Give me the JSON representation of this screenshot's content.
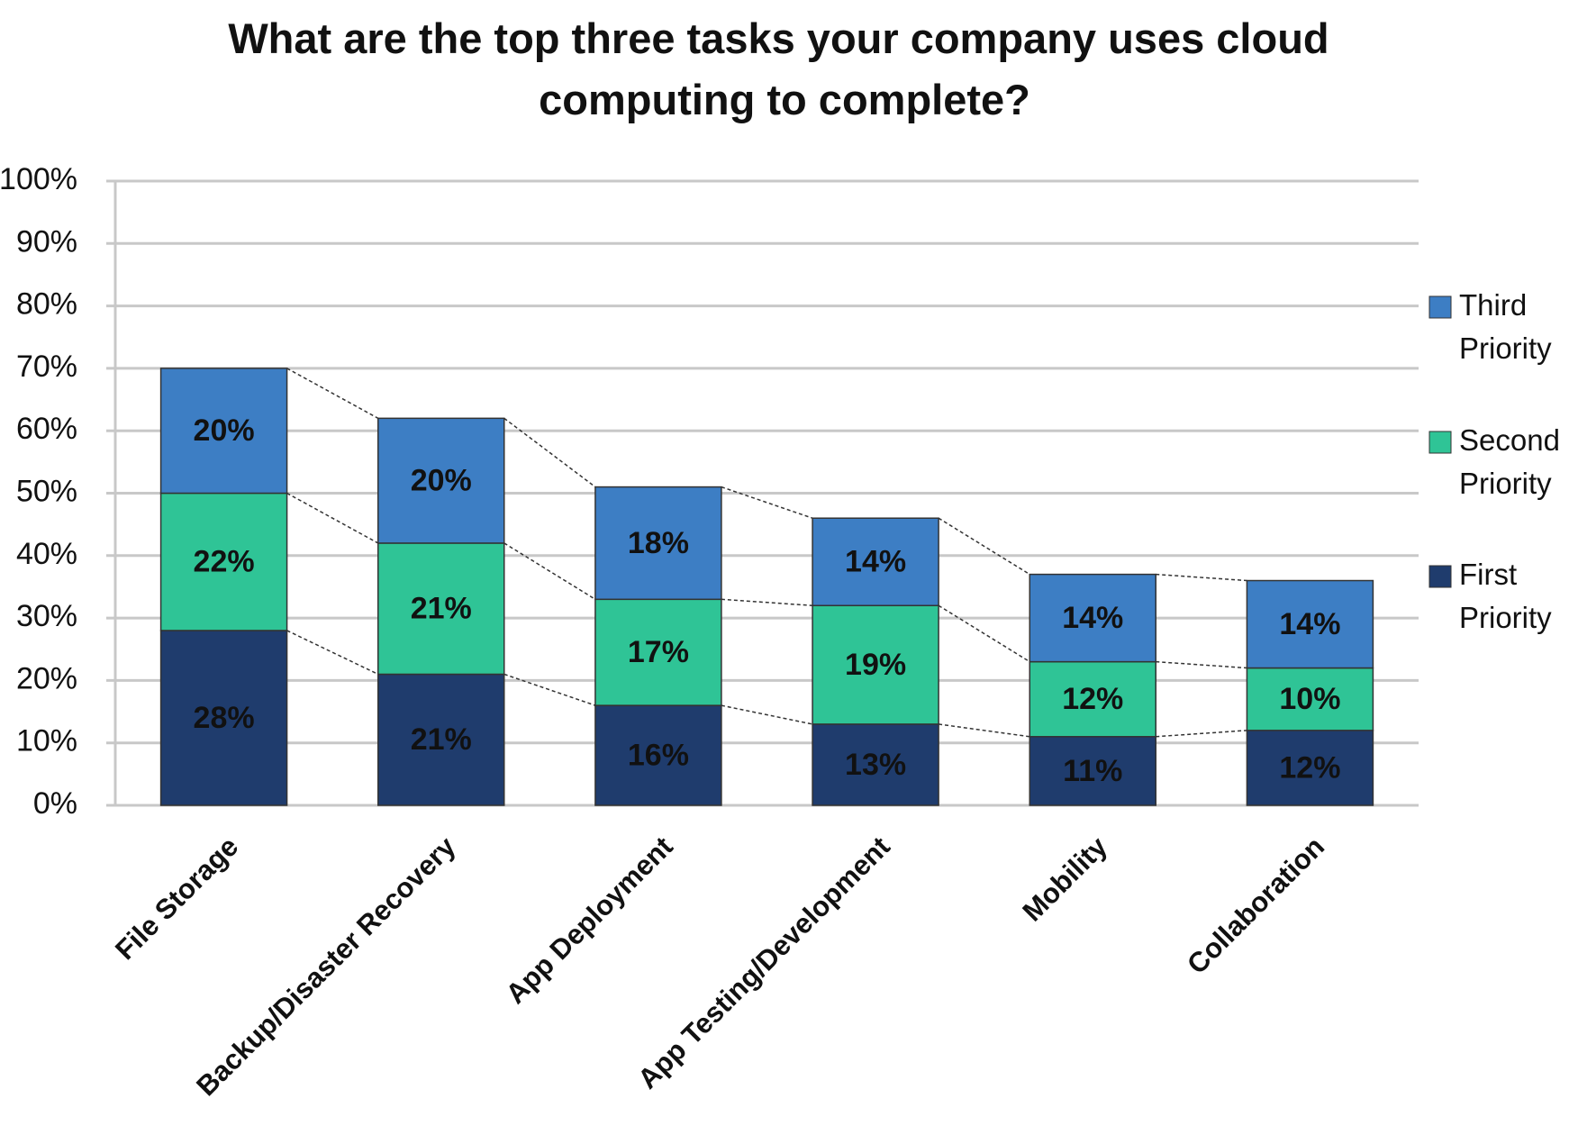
{
  "chart_data": {
    "type": "stacked_bar",
    "title": "What are the top three tasks your company uses cloud computing to complete?",
    "categories": [
      "File Storage",
      "Backup/Disaster Recovery",
      "App Deployment",
      "App Testing/Development",
      "Mobility",
      "Collaboration"
    ],
    "series": [
      {
        "name": "First Priority",
        "color": "#1f3c6d",
        "values": [
          28,
          21,
          16,
          13,
          11,
          12
        ],
        "value_labels": [
          "28%",
          "21%",
          "16%",
          "13%",
          "11%",
          "12%"
        ]
      },
      {
        "name": "Second Priority",
        "color": "#2fc496",
        "values": [
          22,
          21,
          17,
          19,
          12,
          10
        ],
        "value_labels": [
          "22%",
          "21%",
          "17%",
          "19%",
          "12%",
          "10%"
        ]
      },
      {
        "name": "Third Priority",
        "color": "#3d7ec4",
        "values": [
          20,
          20,
          18,
          14,
          14,
          14
        ],
        "value_labels": [
          "20%",
          "20%",
          "18%",
          "14%",
          "14%",
          "14%"
        ]
      }
    ],
    "ylim": [
      0,
      100
    ],
    "yticks": [
      {
        "value": 0,
        "label": "0%"
      },
      {
        "value": 10,
        "label": "10%"
      },
      {
        "value": 20,
        "label": "20%"
      },
      {
        "value": 30,
        "label": "30%"
      },
      {
        "value": 40,
        "label": "40%"
      },
      {
        "value": 50,
        "label": "50%"
      },
      {
        "value": 60,
        "label": "60%"
      },
      {
        "value": 70,
        "label": "70%"
      },
      {
        "value": 80,
        "label": "80%"
      },
      {
        "value": 90,
        "label": "90%"
      },
      {
        "value": 100,
        "label": "100%"
      }
    ],
    "grid": true,
    "legend": "right",
    "series_lines": true
  }
}
